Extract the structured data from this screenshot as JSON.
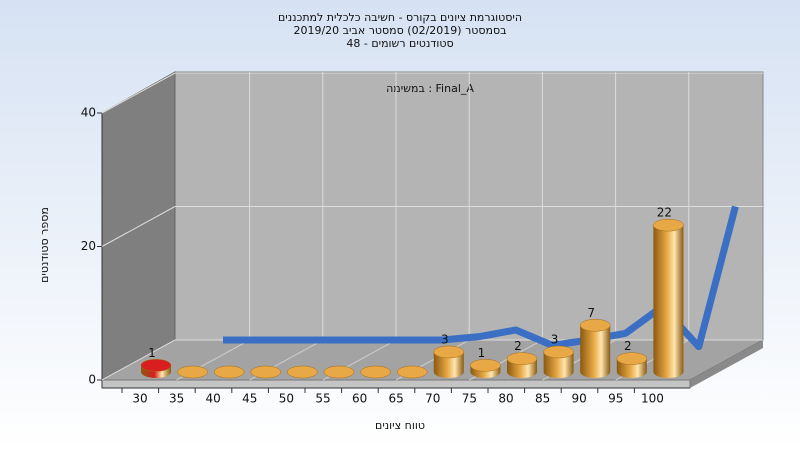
{
  "chart_data": {
    "type": "bar",
    "title": "היסטוגרמת ציונים בקורס - חשיבה כלכלית למתכננים",
    "subtitle": "בסמסטר  (02/2019)  סמסטר אביב 2019/20",
    "subtitle2": "סטודנטים רשומים - 48",
    "annotation": "במשימה : Final_A",
    "x_label": "טווח ציונים",
    "y_label": "מספר סטודנטים",
    "categories": [
      "30",
      "35",
      "40",
      "45",
      "50",
      "55",
      "60",
      "65",
      "70",
      "75",
      "80",
      "85",
      "90",
      "95",
      "100"
    ],
    "values": [
      1,
      0,
      0,
      0,
      0,
      0,
      0,
      0,
      3,
      1,
      2,
      3,
      7,
      2,
      22
    ],
    "colors": [
      "#d81e1e",
      "#e8a845",
      "#e8a845",
      "#e8a845",
      "#e8a845",
      "#e8a845",
      "#e8a845",
      "#e8a845",
      "#e8a845",
      "#e8a845",
      "#e8a845",
      "#e8a845",
      "#e8a845",
      "#e8a845",
      "#e8a845"
    ],
    "curve": [
      0,
      0,
      0,
      0,
      0,
      0,
      0,
      0.5,
      1.5,
      -0.8,
      0,
      1,
      5,
      -1,
      20
    ],
    "curve_color": "#3a6fc4",
    "ylim": [
      0,
      40
    ],
    "yticks": [
      0,
      20,
      40
    ],
    "grid": true
  }
}
